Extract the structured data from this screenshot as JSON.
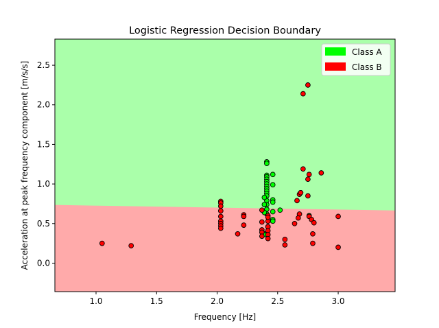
{
  "chart_data": {
    "type": "scatter",
    "title": "Logistic Regression Decision Boundary",
    "xlabel": "Frequency [Hz]",
    "ylabel": "Acceleration at peak frequency component [m/s/s]",
    "xlim": [
      0.66,
      3.47
    ],
    "ylim": [
      -0.36,
      2.83
    ],
    "xticks": [
      1.0,
      1.5,
      2.0,
      2.5,
      3.0
    ],
    "xtick_labels": [
      "1.0",
      "1.5",
      "2.0",
      "2.5",
      "3.0"
    ],
    "yticks": [
      0.0,
      0.5,
      1.0,
      1.5,
      2.0,
      2.5
    ],
    "ytick_labels": [
      "0.0",
      "0.5",
      "1.0",
      "1.5",
      "2.0",
      "2.5"
    ],
    "grid": false,
    "legend_position": "top-right",
    "decision_boundary": {
      "x": [
        0.66,
        3.47
      ],
      "y": [
        0.735,
        0.665
      ],
      "above_color": "#aaffaa",
      "below_color": "#ffaaaa"
    },
    "series": [
      {
        "name": "Class A",
        "color": "#00ff00",
        "x": [
          2.41,
          2.41,
          2.41,
          2.41,
          2.41,
          2.41,
          2.41,
          2.41,
          2.41,
          2.41,
          2.41,
          2.41,
          2.41,
          2.41,
          2.41,
          2.41,
          2.39,
          2.39,
          2.39,
          2.39,
          2.46,
          2.46,
          2.46,
          2.46,
          2.46,
          2.46,
          2.46,
          2.52,
          2.76,
          2.39,
          2.42
        ],
        "y": [
          1.28,
          1.26,
          1.11,
          1.09,
          1.06,
          1.03,
          1.0,
          0.97,
          0.94,
          0.91,
          0.88,
          0.85,
          0.79,
          0.74,
          0.68,
          0.62,
          0.83,
          0.74,
          0.64,
          0.37,
          1.12,
          0.99,
          0.8,
          0.77,
          0.65,
          0.55,
          0.53,
          0.67,
          0.6,
          0.36,
          0.46
        ]
      },
      {
        "name": "Class B",
        "color": "#ff0000",
        "x": [
          1.05,
          1.29,
          2.03,
          2.03,
          2.03,
          2.03,
          2.03,
          2.03,
          2.03,
          2.03,
          2.03,
          2.17,
          2.22,
          2.22,
          2.22,
          2.37,
          2.37,
          2.37,
          2.37,
          2.37,
          2.42,
          2.42,
          2.42,
          2.42,
          2.42,
          2.42,
          2.42,
          2.56,
          2.56,
          2.64,
          2.66,
          2.68,
          2.68,
          2.67,
          2.69,
          2.71,
          2.76,
          2.75,
          2.75,
          2.75,
          2.76,
          2.78,
          2.79,
          2.8,
          2.79,
          2.71,
          2.69,
          2.86,
          3.0,
          3.0
        ],
        "y": [
          0.25,
          0.22,
          0.78,
          0.76,
          0.72,
          0.66,
          0.59,
          0.53,
          0.5,
          0.47,
          0.44,
          0.37,
          0.61,
          0.59,
          0.48,
          0.67,
          0.52,
          0.42,
          0.39,
          0.34,
          0.6,
          0.53,
          0.46,
          0.41,
          0.36,
          0.31,
          0.58,
          0.3,
          0.23,
          0.5,
          0.79,
          0.87,
          0.62,
          0.57,
          0.89,
          1.19,
          1.12,
          1.06,
          0.85,
          2.25,
          0.59,
          0.55,
          0.37,
          0.51,
          0.25,
          2.14,
          0.89,
          1.14,
          0.59,
          0.2
        ]
      }
    ]
  }
}
